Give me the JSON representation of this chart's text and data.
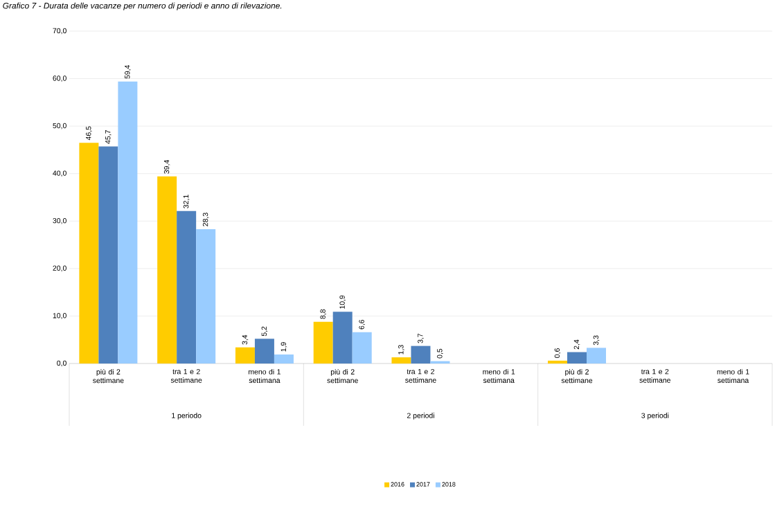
{
  "chart_data": {
    "type": "bar",
    "title": "Grafico 7 - Durata delle vacanze per numero di periodi e anno di rilevazione.",
    "categories": [
      "più di 2 settimane",
      "tra 1 e 2 settimane",
      "meno di 1 settimana",
      "più di 2 settimane",
      "tra 1 e 2 settimane",
      "meno di 1 settimana",
      "più di 2 settimane",
      "tra 1 e 2 settimane",
      "meno di 1 settimana"
    ],
    "series": [
      {
        "name": "2016",
        "color": "#ffcc00",
        "values": [
          46.5,
          39.4,
          3.4,
          8.8,
          1.3,
          null,
          0.6,
          null,
          null
        ],
        "value_labels": [
          "46,5",
          "39,4",
          "3,4",
          "8,8",
          "1,3",
          null,
          "0,6",
          null,
          null
        ]
      },
      {
        "name": "2017",
        "color": "#4f81bd",
        "values": [
          45.7,
          32.1,
          5.2,
          10.9,
          3.7,
          null,
          2.4,
          null,
          null
        ],
        "value_labels": [
          "45,7",
          "32,1",
          "5,2",
          "10,9",
          "3,7",
          null,
          "2,4",
          null,
          null
        ]
      },
      {
        "name": "2018",
        "color": "#99ccff",
        "values": [
          59.4,
          28.3,
          1.9,
          6.6,
          0.5,
          null,
          3.3,
          null,
          null
        ],
        "value_labels": [
          "59,4",
          "28,3",
          "1,9",
          "6,6",
          "0,5",
          null,
          "3,3",
          null,
          null
        ]
      }
    ],
    "annotations": [
      "1 periodo",
      "2 periodi",
      "3 periodi"
    ],
    "ylim": [
      0,
      70
    ],
    "yticks": [
      {
        "value": 0,
        "label": "0,0"
      },
      {
        "value": 10,
        "label": "10,0"
      },
      {
        "value": 20,
        "label": "20,0"
      },
      {
        "value": 30,
        "label": "30,0"
      },
      {
        "value": 40,
        "label": "40,0"
      },
      {
        "value": 50,
        "label": "50,0"
      },
      {
        "value": 60,
        "label": "60,0"
      },
      {
        "value": 70,
        "label": "70,0"
      }
    ],
    "grid": "y",
    "legend": "bottom"
  }
}
